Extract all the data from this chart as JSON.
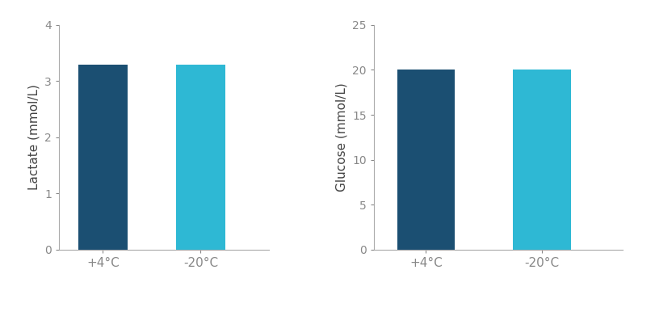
{
  "background_color": "#ffffff",
  "axes_bg_color": "#ffffff",
  "text_color": "#444444",
  "tick_color": "#888888",
  "spine_color": "#aaaaaa",
  "lactate": {
    "categories": [
      "+4°C",
      "-20°C"
    ],
    "values": [
      3.3,
      3.3
    ],
    "colors": [
      "#1b4f72",
      "#2eb8d4"
    ],
    "ylabel": "Lactate (mmol/L)",
    "ylim": [
      0,
      4
    ],
    "yticks": [
      0,
      1,
      2,
      3,
      4
    ]
  },
  "glucose": {
    "categories": [
      "+4°C",
      "-20°C"
    ],
    "values": [
      20.0,
      20.0
    ],
    "colors": [
      "#1b4f72",
      "#2eb8d4"
    ],
    "ylabel": "Glucose (mmol/L)",
    "ylim": [
      0,
      25
    ],
    "yticks": [
      0,
      5,
      10,
      15,
      20,
      25
    ]
  },
  "bar_width": 0.5,
  "xlabel_fontsize": 11,
  "ylabel_fontsize": 11,
  "tick_fontsize": 10,
  "figure_facecolor": "#ffffff"
}
